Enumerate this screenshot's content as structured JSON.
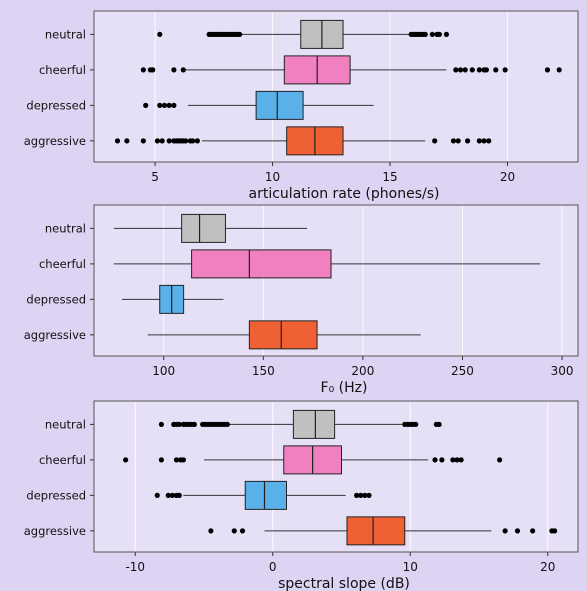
{
  "chart_data": [
    {
      "type": "boxplot",
      "orientation": "horizontal",
      "xlabel": "articulation rate (phones/s)",
      "xlim": [
        2.4,
        23.0
      ],
      "xticks": [
        5,
        10,
        15,
        20
      ],
      "xtick_labels": [
        "5",
        "10",
        "15",
        "20"
      ],
      "grid": true,
      "categories": [
        "neutral",
        "cheerful",
        "depressed",
        "aggressive"
      ],
      "series": [
        {
          "category": "neutral",
          "color": "#c0c0c0",
          "whisker_low": 7.4,
          "q1": 11.2,
          "median": 12.1,
          "q3": 13.0,
          "whisker_high": 15.9,
          "outliers": [
            5.2,
            7.3,
            7.4,
            7.5,
            7.6,
            7.7,
            7.8,
            7.9,
            8.0,
            8.1,
            8.2,
            8.3,
            8.4,
            8.5,
            8.6,
            15.9,
            16.0,
            16.1,
            16.2,
            16.3,
            16.4,
            16.5,
            16.8,
            17.0,
            17.1,
            17.4
          ]
        },
        {
          "category": "cheerful",
          "color": "#f080c0",
          "whisker_low": 6.3,
          "q1": 10.5,
          "median": 11.9,
          "q3": 13.3,
          "whisker_high": 17.4,
          "outliers": [
            4.5,
            4.8,
            4.9,
            5.8,
            6.2,
            17.8,
            18.0,
            18.2,
            18.5,
            18.8,
            19.0,
            19.1,
            19.5,
            19.9,
            21.7,
            22.2
          ]
        },
        {
          "category": "depressed",
          "color": "#5ab0e8",
          "whisker_low": 6.4,
          "q1": 9.3,
          "median": 10.2,
          "q3": 11.3,
          "whisker_high": 14.3,
          "outliers": [
            4.6,
            5.2,
            5.4,
            5.6,
            5.8
          ]
        },
        {
          "category": "aggressive",
          "color": "#f06035",
          "whisker_low": 7.0,
          "q1": 10.6,
          "median": 11.8,
          "q3": 13.0,
          "whisker_high": 16.5,
          "outliers": [
            3.4,
            3.8,
            4.5,
            5.1,
            5.3,
            5.6,
            5.8,
            5.9,
            6.0,
            6.1,
            6.2,
            6.3,
            6.5,
            6.6,
            6.8,
            16.9,
            17.7,
            17.9,
            18.3,
            18.8,
            19.0,
            19.2
          ]
        }
      ]
    },
    {
      "type": "boxplot",
      "orientation": "horizontal",
      "xlabel": "F₀ (Hz)",
      "xlim": [
        65,
        308
      ],
      "xticks": [
        100,
        150,
        200,
        250,
        300
      ],
      "xtick_labels": [
        "100",
        "150",
        "200",
        "250",
        "300"
      ],
      "grid": true,
      "categories": [
        "neutral",
        "cheerful",
        "depressed",
        "aggressive"
      ],
      "series": [
        {
          "category": "neutral",
          "color": "#c0c0c0",
          "whisker_low": 75,
          "q1": 109,
          "median": 118,
          "q3": 131,
          "whisker_high": 172,
          "outliers": []
        },
        {
          "category": "cheerful",
          "color": "#f080c0",
          "whisker_low": 75,
          "q1": 114,
          "median": 143,
          "q3": 184,
          "whisker_high": 289,
          "outliers": []
        },
        {
          "category": "depressed",
          "color": "#5ab0e8",
          "whisker_low": 79,
          "q1": 98,
          "median": 104,
          "q3": 110,
          "whisker_high": 130,
          "outliers": []
        },
        {
          "category": "aggressive",
          "color": "#f06035",
          "whisker_low": 92,
          "q1": 143,
          "median": 159,
          "q3": 177,
          "whisker_high": 229,
          "outliers": []
        }
      ]
    },
    {
      "type": "boxplot",
      "orientation": "horizontal",
      "xlabel": "spectral slope (dB)",
      "xlim": [
        -13.0,
        22.2
      ],
      "xticks": [
        -10,
        0,
        10,
        20
      ],
      "xtick_labels": [
        "-10",
        "0",
        "10",
        "20"
      ],
      "grid": true,
      "categories": [
        "neutral",
        "cheerful",
        "depressed",
        "aggressive"
      ],
      "series": [
        {
          "category": "neutral",
          "color": "#c0c0c0",
          "whisker_low": -3.3,
          "q1": 1.5,
          "median": 3.1,
          "q3": 4.5,
          "whisker_high": 9.4,
          "outliers": [
            -8.1,
            -7.2,
            -7.0,
            -6.8,
            -6.5,
            -6.3,
            -6.1,
            -5.9,
            -5.7,
            -5.1,
            -4.9,
            -4.7,
            -4.5,
            -4.3,
            -4.1,
            -3.9,
            -3.7,
            -3.5,
            -3.3,
            9.6,
            9.8,
            10.0,
            10.2,
            10.4,
            11.9,
            12.1
          ]
        },
        {
          "category": "cheerful",
          "color": "#f080c0",
          "whisker_low": -5.0,
          "q1": 0.8,
          "median": 2.9,
          "q3": 5.0,
          "whisker_high": 11.3,
          "outliers": [
            -10.7,
            -8.1,
            -7.0,
            -6.7,
            -6.5,
            11.8,
            12.3,
            13.1,
            13.4,
            13.7,
            16.5
          ]
        },
        {
          "category": "depressed",
          "color": "#5ab0e8",
          "whisker_low": -6.5,
          "q1": -2.0,
          "median": -0.6,
          "q3": 1.0,
          "whisker_high": 5.3,
          "outliers": [
            -8.4,
            -7.6,
            -7.3,
            -7.0,
            -6.8,
            6.1,
            6.4,
            6.7,
            7.0
          ]
        },
        {
          "category": "aggressive",
          "color": "#f06035",
          "whisker_low": -0.6,
          "q1": 5.4,
          "median": 7.3,
          "q3": 9.6,
          "whisker_high": 15.9,
          "outliers": [
            -4.5,
            -2.8,
            -2.2,
            16.9,
            17.8,
            18.9,
            20.3,
            20.5
          ]
        }
      ]
    }
  ]
}
